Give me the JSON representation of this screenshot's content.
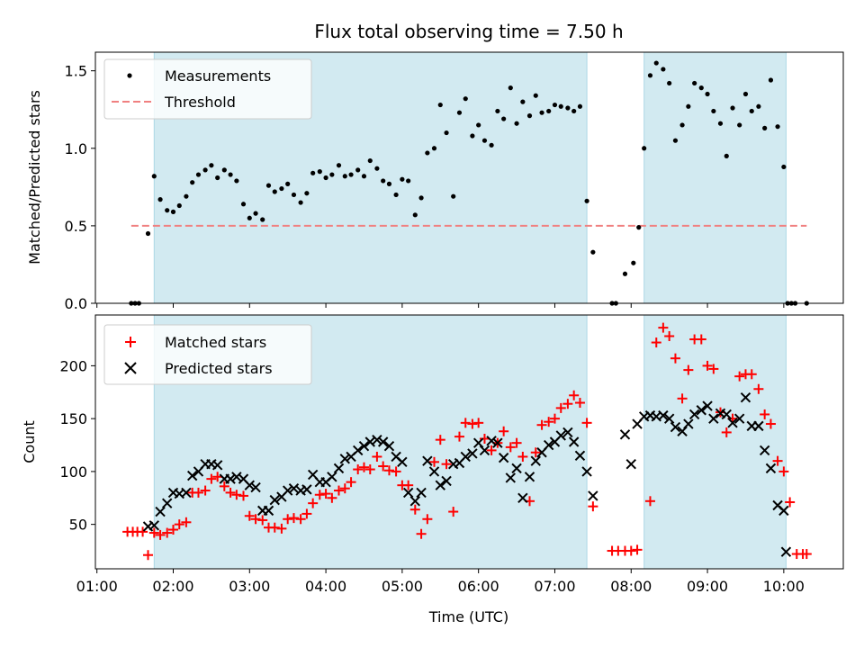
{
  "chart_data": [
    {
      "type": "scatter",
      "title": "Flux total observing time = 7.50 h",
      "xlabel": "",
      "ylabel": "Matched/Predicted stars",
      "xlim": [
        0.98,
        10.78
      ],
      "ylim": [
        0,
        1.62
      ],
      "yticks": [
        0.0,
        0.5,
        1.0,
        1.5
      ],
      "ytick_labels": [
        "0.0",
        "0.5",
        "1.0",
        "1.5"
      ],
      "shaded_spans": [
        [
          1.75,
          7.42
        ],
        [
          8.17,
          10.03
        ]
      ],
      "shade_color": "#add8e6",
      "legend_position": "upper left",
      "threshold": {
        "name": "Threshold",
        "y": 0.5,
        "x_range": [
          1.45,
          10.3
        ],
        "color": "#f08080",
        "style": "dashed"
      },
      "series": [
        {
          "name": "Measurements",
          "marker": "dot",
          "color": "#000000",
          "x": [
            1.45,
            1.5,
            1.55,
            1.67,
            1.75,
            1.83,
            1.92,
            2.0,
            2.08,
            2.17,
            2.25,
            2.33,
            2.42,
            2.5,
            2.58,
            2.67,
            2.75,
            2.83,
            2.92,
            3.0,
            3.08,
            3.17,
            3.25,
            3.33,
            3.42,
            3.5,
            3.58,
            3.67,
            3.75,
            3.83,
            3.92,
            4.0,
            4.08,
            4.17,
            4.25,
            4.33,
            4.42,
            4.5,
            4.58,
            4.67,
            4.75,
            4.83,
            4.92,
            5.0,
            5.08,
            5.17,
            5.25,
            5.33,
            5.42,
            5.5,
            5.58,
            5.67,
            5.75,
            5.83,
            5.92,
            6.0,
            6.08,
            6.17,
            6.25,
            6.33,
            6.42,
            6.5,
            6.58,
            6.67,
            6.75,
            6.83,
            6.92,
            7.0,
            7.08,
            7.17,
            7.25,
            7.33,
            7.42,
            7.5,
            7.75,
            7.8,
            7.92,
            8.03,
            8.1,
            8.17,
            8.25,
            8.33,
            8.42,
            8.5,
            8.58,
            8.67,
            8.75,
            8.83,
            8.92,
            9.0,
            9.08,
            9.17,
            9.25,
            9.33,
            9.42,
            9.5,
            9.58,
            9.67,
            9.75,
            9.83,
            9.92,
            10.0,
            10.05,
            10.1,
            10.15,
            10.3
          ],
          "y": [
            0.0,
            0.0,
            0.0,
            0.45,
            0.82,
            0.67,
            0.6,
            0.59,
            0.63,
            0.69,
            0.78,
            0.83,
            0.86,
            0.89,
            0.81,
            0.86,
            0.83,
            0.79,
            0.64,
            0.55,
            0.58,
            0.54,
            0.76,
            0.72,
            0.74,
            0.77,
            0.7,
            0.65,
            0.71,
            0.84,
            0.85,
            0.81,
            0.83,
            0.89,
            0.82,
            0.83,
            0.86,
            0.82,
            0.92,
            0.87,
            0.79,
            0.77,
            0.7,
            0.8,
            0.79,
            0.57,
            0.68,
            0.97,
            1.0,
            1.28,
            1.1,
            0.69,
            1.23,
            1.32,
            1.08,
            1.15,
            1.05,
            1.02,
            1.24,
            1.19,
            1.39,
            1.16,
            1.3,
            1.21,
            1.34,
            1.23,
            1.24,
            1.28,
            1.27,
            1.26,
            1.24,
            1.27,
            0.66,
            0.33,
            0.0,
            0.0,
            0.19,
            0.26,
            0.49,
            1.0,
            1.47,
            1.55,
            1.51,
            1.42,
            1.05,
            1.15,
            1.27,
            1.42,
            1.39,
            1.35,
            1.24,
            1.16,
            0.95,
            1.26,
            1.15,
            1.35,
            1.24,
            1.27,
            1.13,
            1.44,
            1.14,
            0.88,
            0.0,
            0.0,
            0.0,
            0.0
          ]
        }
      ]
    },
    {
      "type": "scatter",
      "title": "",
      "xlabel": "Time (UTC)",
      "ylabel": "Count",
      "xlim": [
        0.98,
        10.78
      ],
      "ylim": [
        8,
        248
      ],
      "yticks": [
        50,
        100,
        150,
        200
      ],
      "ytick_labels": [
        "50",
        "100",
        "150",
        "200"
      ],
      "xticks": [
        1,
        2,
        3,
        4,
        5,
        6,
        7,
        8,
        9,
        10
      ],
      "xtick_labels": [
        "01:00",
        "02:00",
        "03:00",
        "04:00",
        "05:00",
        "06:00",
        "07:00",
        "08:00",
        "09:00",
        "10:00"
      ],
      "shaded_spans": [
        [
          1.75,
          7.42
        ],
        [
          8.17,
          10.03
        ]
      ],
      "shade_color": "#add8e6",
      "legend_position": "upper left",
      "series": [
        {
          "name": "Matched stars",
          "marker": "plus",
          "color": "#ff0000",
          "x": [
            1.4,
            1.47,
            1.53,
            1.6,
            1.67,
            1.75,
            1.83,
            1.92,
            2.0,
            2.08,
            2.17,
            2.25,
            2.33,
            2.42,
            2.5,
            2.58,
            2.67,
            2.75,
            2.83,
            2.92,
            3.0,
            3.08,
            3.17,
            3.25,
            3.33,
            3.42,
            3.5,
            3.58,
            3.67,
            3.75,
            3.83,
            3.92,
            4.0,
            4.08,
            4.17,
            4.25,
            4.33,
            4.42,
            4.5,
            4.58,
            4.67,
            4.75,
            4.83,
            4.92,
            5.0,
            5.08,
            5.17,
            5.25,
            5.33,
            5.42,
            5.5,
            5.58,
            5.67,
            5.75,
            5.83,
            5.92,
            6.0,
            6.08,
            6.17,
            6.25,
            6.33,
            6.42,
            6.5,
            6.58,
            6.67,
            6.75,
            6.83,
            6.92,
            7.0,
            7.08,
            7.17,
            7.25,
            7.33,
            7.42,
            7.5,
            7.75,
            7.83,
            7.92,
            8.0,
            8.08,
            8.25,
            8.33,
            8.42,
            8.5,
            8.58,
            8.67,
            8.75,
            8.83,
            8.92,
            9.0,
            9.08,
            9.17,
            9.25,
            9.33,
            9.42,
            9.5,
            9.58,
            9.67,
            9.75,
            9.83,
            9.92,
            10.0,
            10.08,
            10.17,
            10.25,
            10.3
          ],
          "y": [
            43,
            43,
            43,
            43,
            21,
            42,
            40,
            42,
            45,
            50,
            52,
            80,
            80,
            82,
            93,
            95,
            86,
            80,
            78,
            77,
            58,
            55,
            54,
            47,
            47,
            46,
            55,
            56,
            55,
            60,
            70,
            78,
            79,
            75,
            82,
            84,
            90,
            102,
            104,
            102,
            114,
            105,
            101,
            100,
            87,
            87,
            64,
            41,
            55,
            109,
            130,
            107,
            62,
            133,
            146,
            145,
            146,
            131,
            120,
            127,
            138,
            123,
            127,
            114,
            72,
            118,
            144,
            147,
            150,
            160,
            164,
            172,
            165,
            146,
            67,
            25,
            25,
            25,
            25,
            26,
            72,
            222,
            236,
            228,
            207,
            169,
            196,
            225,
            225,
            200,
            197,
            156,
            137,
            150,
            190,
            192,
            192,
            178,
            154,
            145,
            110,
            100,
            71,
            22,
            22,
            22
          ]
        },
        {
          "name": "Predicted stars",
          "marker": "x",
          "color": "#000000",
          "x": [
            1.67,
            1.75,
            1.83,
            1.92,
            2.0,
            2.08,
            2.17,
            2.25,
            2.33,
            2.42,
            2.5,
            2.58,
            2.67,
            2.75,
            2.83,
            2.92,
            3.0,
            3.08,
            3.17,
            3.25,
            3.33,
            3.42,
            3.5,
            3.58,
            3.67,
            3.75,
            3.83,
            3.92,
            4.0,
            4.08,
            4.17,
            4.25,
            4.33,
            4.42,
            4.5,
            4.58,
            4.67,
            4.75,
            4.83,
            4.92,
            5.0,
            5.08,
            5.17,
            5.25,
            5.33,
            5.42,
            5.5,
            5.58,
            5.67,
            5.75,
            5.83,
            5.92,
            6.0,
            6.08,
            6.17,
            6.25,
            6.33,
            6.42,
            6.5,
            6.58,
            6.67,
            6.75,
            6.83,
            6.92,
            7.0,
            7.08,
            7.17,
            7.25,
            7.33,
            7.42,
            7.5,
            7.92,
            8.0,
            8.08,
            8.17,
            8.25,
            8.33,
            8.42,
            8.5,
            8.58,
            8.67,
            8.75,
            8.83,
            8.92,
            9.0,
            9.08,
            9.17,
            9.25,
            9.33,
            9.42,
            9.5,
            9.58,
            9.67,
            9.75,
            9.83,
            9.92,
            10.0,
            10.03
          ],
          "y": [
            48,
            49,
            62,
            70,
            80,
            79,
            80,
            96,
            100,
            107,
            107,
            106,
            93,
            93,
            95,
            93,
            87,
            85,
            63,
            63,
            73,
            76,
            82,
            84,
            82,
            83,
            97,
            90,
            90,
            95,
            103,
            112,
            114,
            120,
            124,
            128,
            130,
            128,
            124,
            114,
            109,
            80,
            72,
            80,
            110,
            100,
            87,
            91,
            107,
            108,
            114,
            117,
            127,
            120,
            129,
            127,
            113,
            94,
            103,
            75,
            95,
            110,
            118,
            125,
            128,
            134,
            137,
            128,
            115,
            100,
            77,
            135,
            107,
            145,
            152,
            153,
            152,
            153,
            150,
            142,
            138,
            145,
            154,
            158,
            162,
            150,
            155,
            154,
            146,
            150,
            170,
            143,
            143,
            120,
            103,
            68,
            63,
            24
          ]
        }
      ]
    }
  ]
}
